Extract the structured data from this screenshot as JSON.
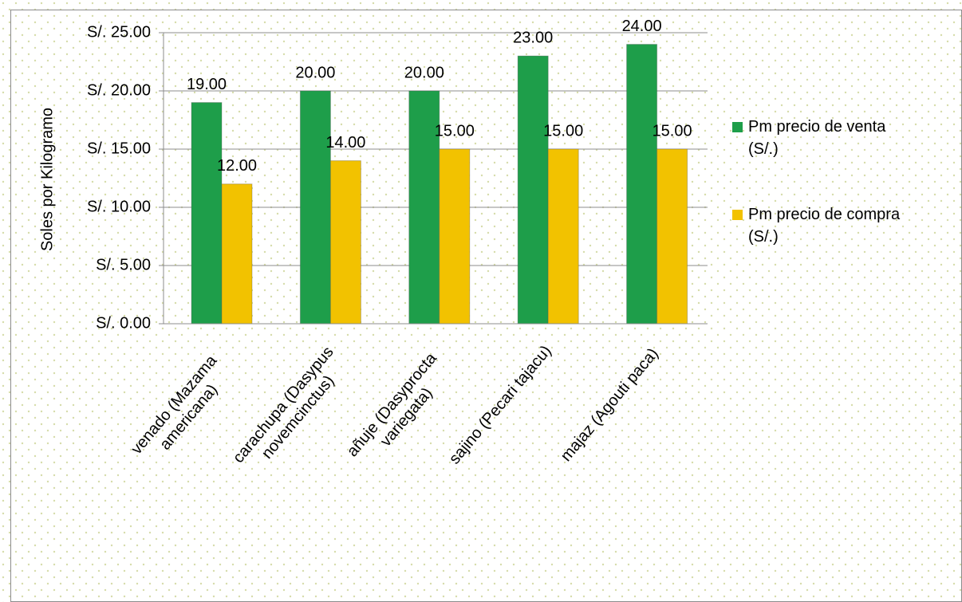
{
  "chart_data": {
    "type": "bar",
    "y_label": "Soles por Kilogramo",
    "categories": [
      "venado (Mazama americana)",
      "carachupa (Dasypus novemcinctus)",
      "añuje (Dasyprocta variegata)",
      "sajino (Pecari tajacu)",
      "majaz (Agouti paca)"
    ],
    "series": [
      {
        "name": "Pm precio de venta (S/.)",
        "color": "#1e9e4a",
        "values": [
          19,
          20,
          20,
          23,
          24
        ],
        "value_labels": [
          "19.00",
          "20.00",
          "20.00",
          "23.00",
          "24.00"
        ]
      },
      {
        "name": "Pm precio de compra (S/.)",
        "color": "#f2c200",
        "values": [
          12,
          14,
          15,
          15,
          15
        ],
        "value_labels": [
          "12.00",
          "14.00",
          "15.00",
          "15.00",
          "15.00"
        ]
      }
    ],
    "ylim": [
      0,
      25
    ],
    "yticks": [
      {
        "value": 0,
        "label": "S/. 0.00"
      },
      {
        "value": 5,
        "label": "S/. 5.00"
      },
      {
        "value": 10,
        "label": "S/. 10.00"
      },
      {
        "value": 15,
        "label": "S/. 15.00"
      },
      {
        "value": 20,
        "label": "S/. 20.00"
      },
      {
        "value": 25,
        "label": "S/. 25.00"
      }
    ],
    "grid": true,
    "legend": "right"
  }
}
